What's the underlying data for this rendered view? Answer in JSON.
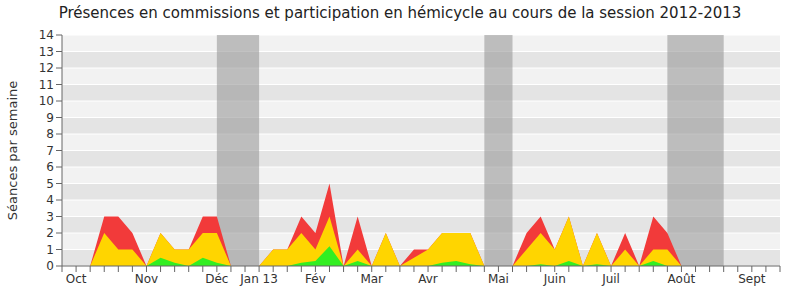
{
  "chart_data": {
    "type": "area",
    "title": "Présences en commissions et participation en hémicycle au cours de la session 2012-2013",
    "y_label": "Séances par semaine",
    "categories": [
      null,
      "Oct",
      null,
      null,
      null,
      null,
      "Nov",
      null,
      null,
      null,
      null,
      "Déc",
      null,
      null,
      "Jan 13",
      null,
      null,
      null,
      "Fév",
      null,
      null,
      null,
      "Mar",
      null,
      null,
      null,
      "Avr",
      null,
      null,
      null,
      null,
      "Mai",
      null,
      null,
      null,
      "Juin",
      null,
      null,
      null,
      "Juil",
      null,
      null,
      null,
      null,
      "Août",
      null,
      null,
      null,
      null,
      "Sept",
      null,
      null
    ],
    "series": [
      {
        "color": "#f23a3a",
        "values": [
          0,
          0,
          0,
          3,
          3,
          2,
          0,
          2,
          1,
          1,
          3,
          3,
          0,
          0,
          0,
          1,
          1,
          3,
          2,
          5,
          0,
          3,
          0,
          2,
          0,
          1,
          1,
          2,
          2,
          2,
          0,
          0,
          0,
          2,
          3,
          1,
          3,
          0,
          2,
          0,
          2,
          0,
          3,
          2,
          0,
          0,
          0,
          0,
          0,
          0,
          0,
          0
        ]
      },
      {
        "color": "#ffd500",
        "values": [
          0,
          0,
          0,
          2,
          1,
          1,
          0,
          2,
          1,
          1,
          2,
          2,
          0,
          0,
          0,
          1,
          1,
          2,
          1,
          3,
          0,
          1,
          0,
          2,
          0,
          0.5,
          1,
          2,
          2,
          2,
          0,
          0,
          0,
          1,
          2,
          1,
          3,
          0,
          2,
          0,
          1,
          0,
          1,
          1,
          0,
          0,
          0,
          0,
          0,
          0,
          0,
          0
        ]
      },
      {
        "color": "#33ee22",
        "values": [
          0,
          0,
          0,
          0,
          0,
          0,
          0,
          0.5,
          0.2,
          0,
          0.5,
          0.2,
          0,
          0,
          0,
          0,
          0,
          0.2,
          0.3,
          1.2,
          0,
          0.3,
          0,
          0,
          0,
          0,
          0,
          0.2,
          0.3,
          0.1,
          0,
          0,
          0,
          0,
          0.1,
          0,
          0.3,
          0,
          0.1,
          0,
          0,
          0,
          0.3,
          0,
          0,
          0,
          0,
          0,
          0,
          0,
          0,
          0
        ]
      }
    ],
    "stacked": false,
    "ylim": [
      0,
      14
    ],
    "yticks": [
      0,
      1,
      2,
      3,
      4,
      5,
      6,
      7,
      8,
      9,
      10,
      11,
      12,
      13,
      14
    ],
    "grid": true,
    "shaded_ranges": [
      [
        11,
        14
      ],
      [
        30,
        32
      ],
      [
        43,
        47
      ]
    ]
  }
}
